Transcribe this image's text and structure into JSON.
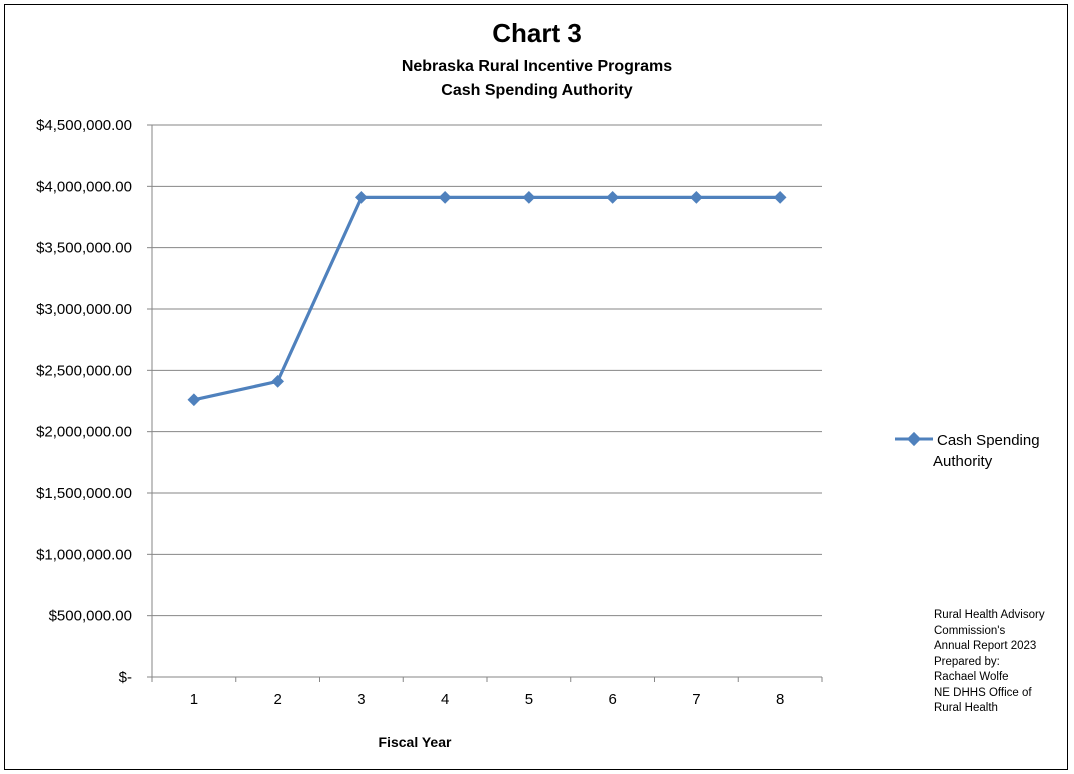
{
  "chart_data": {
    "type": "line",
    "title": "Chart 3",
    "subtitle_lines": [
      "Nebraska Rural Incentive Programs",
      "Cash Spending Authority"
    ],
    "xlabel": "Fiscal Year",
    "ylabel": "",
    "x": [
      1,
      2,
      3,
      4,
      5,
      6,
      7,
      8
    ],
    "series": [
      {
        "name": "Cash Spending Authority",
        "values": [
          2260000,
          2410000,
          3910000,
          3910000,
          3910000,
          3910000,
          3910000,
          3910000
        ]
      }
    ],
    "ylim": [
      0,
      4500000
    ],
    "yticks": [
      {
        "value": 0,
        "label": "$-"
      },
      {
        "value": 500000,
        "label": "$500,000.00"
      },
      {
        "value": 1000000,
        "label": "$1,000,000.00"
      },
      {
        "value": 1500000,
        "label": "$1,500,000.00"
      },
      {
        "value": 2000000,
        "label": "$2,000,000.00"
      },
      {
        "value": 2500000,
        "label": "$2,500,000.00"
      },
      {
        "value": 3000000,
        "label": "$3,000,000.00"
      },
      {
        "value": 3500000,
        "label": "$3,500,000.00"
      },
      {
        "value": 4000000,
        "label": "$4,000,000.00"
      },
      {
        "value": 4500000,
        "label": "$4,500,000.00"
      }
    ],
    "xtick_labels": [
      "1",
      "2",
      "3",
      "4",
      "5",
      "6",
      "7",
      "8"
    ],
    "grid": true,
    "legend_position": "right",
    "line_color": "#4F81BD",
    "grid_color": "#868686"
  },
  "legend": {
    "label_line1": "Cash Spending",
    "label_line2": "Authority"
  },
  "note_lines": [
    "Rural Health Advisory",
    "Commission's",
    "Annual Report 2023",
    "Prepared by:",
    "Rachael Wolfe",
    "NE DHHS Office of",
    "Rural Health"
  ]
}
